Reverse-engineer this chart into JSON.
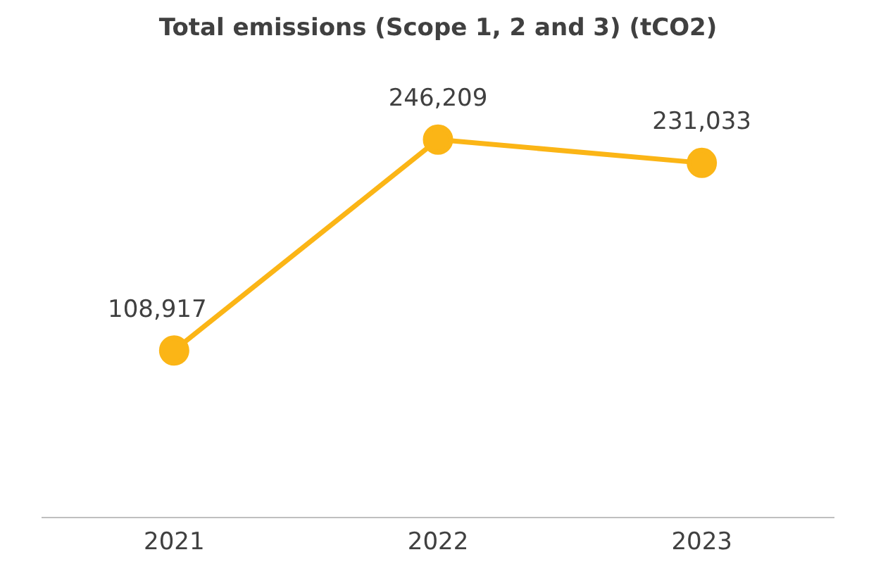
{
  "chart_data": {
    "type": "line",
    "title": "Total emissions (Scope 1, 2 and 3) (tCO2)",
    "categories": [
      "2021",
      "2022",
      "2023"
    ],
    "values": [
      108917,
      246209,
      231033
    ],
    "color": "#fbb516",
    "value_labels": [
      "108,917",
      "246,209",
      "231,033"
    ],
    "marker": "circle",
    "legend": false,
    "grid": false
  }
}
